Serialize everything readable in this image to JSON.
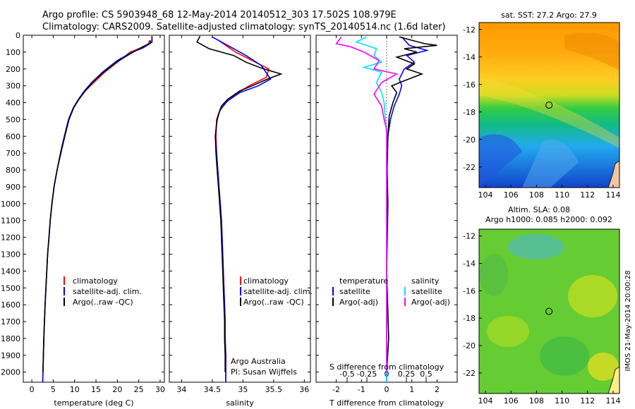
{
  "header": {
    "line1": "Argo profile: CS 5903948_68 12-May-2014 20140512_303 17.502S 108.979E",
    "line2": "Climatology: CARS2009. Satellite-adjusted climatology: synTS_20140514.nc (1.6d later)"
  },
  "colors": {
    "climatology": "#ff0000",
    "satellite": "#0000ff",
    "argo": "#000000",
    "satellite_s": "#00e0ff",
    "argo_s": "#ff00ff"
  },
  "depth_ticks": [
    "0",
    "100",
    "200",
    "300",
    "400",
    "500",
    "600",
    "700",
    "800",
    "900",
    "1000",
    "1100",
    "1200",
    "1300",
    "1400",
    "1500",
    "1600",
    "1700",
    "1800",
    "1900",
    "2000"
  ],
  "chart_data": [
    {
      "type": "line",
      "name": "temperature",
      "xlabel": "temperature (deg C)",
      "xlim": [
        -2,
        31
      ],
      "ylim": [
        2060,
        0
      ],
      "xticks": [
        "0",
        "5",
        "10",
        "15",
        "20",
        "25",
        "30"
      ],
      "legend": [
        "climatology",
        "satellite-adj. clim.",
        "Argo(..raw -QC)"
      ],
      "series": [
        {
          "name": "climatology",
          "color": "#ff0000",
          "points": [
            [
              27.5,
              30
            ],
            [
              27.3,
              50
            ],
            [
              25.5,
              75
            ],
            [
              23,
              100
            ],
            [
              20.5,
              150
            ],
            [
              17,
              220
            ],
            [
              14.5,
              280
            ],
            [
              12.5,
              330
            ],
            [
              11,
              380
            ],
            [
              9.8,
              430
            ],
            [
              8.6,
              500
            ],
            [
              7.6,
              600
            ],
            [
              6.7,
              700
            ],
            [
              5.9,
              800
            ],
            [
              5.2,
              900
            ],
            [
              4.7,
              1000
            ],
            [
              4.3,
              1100
            ],
            [
              4,
              1200
            ],
            [
              3.7,
              1300
            ],
            [
              3.5,
              1400
            ],
            [
              3.3,
              1500
            ],
            [
              3.1,
              1600
            ],
            [
              2.95,
              1700
            ],
            [
              2.8,
              1800
            ],
            [
              2.7,
              1900
            ],
            [
              2.6,
              2000
            ],
            [
              2.55,
              2060
            ]
          ]
        },
        {
          "name": "satellite-adj. clim.",
          "color": "#0000ff",
          "points": [
            [
              27.8,
              30
            ],
            [
              27.6,
              50
            ],
            [
              26,
              75
            ],
            [
              23.5,
              100
            ],
            [
              20,
              150
            ],
            [
              16.5,
              220
            ],
            [
              14,
              280
            ],
            [
              12.3,
              330
            ],
            [
              10.9,
              380
            ],
            [
              9.7,
              430
            ],
            [
              8.6,
              500
            ],
            [
              7.6,
              600
            ],
            [
              6.7,
              700
            ],
            [
              5.9,
              800
            ],
            [
              5.2,
              900
            ],
            [
              4.7,
              1000
            ],
            [
              4.3,
              1100
            ],
            [
              4,
              1200
            ],
            [
              3.7,
              1300
            ],
            [
              3.5,
              1400
            ],
            [
              3.3,
              1500
            ],
            [
              3.1,
              1600
            ],
            [
              2.95,
              1700
            ],
            [
              2.8,
              1800
            ],
            [
              2.7,
              1900
            ],
            [
              2.6,
              2000
            ],
            [
              2.55,
              2060
            ]
          ]
        },
        {
          "name": "Argo(..raw -QC)",
          "color": "#000000",
          "points": [
            [
              28.1,
              5
            ],
            [
              28.1,
              40
            ],
            [
              27.6,
              50
            ],
            [
              25.8,
              70
            ],
            [
              23,
              110
            ],
            [
              19.8,
              160
            ],
            [
              16.5,
              225
            ],
            [
              14.2,
              280
            ],
            [
              12.5,
              330
            ],
            [
              11,
              380
            ],
            [
              9.8,
              430
            ],
            [
              8.7,
              500
            ],
            [
              7.7,
              600
            ],
            [
              6.8,
              700
            ],
            [
              5.9,
              800
            ],
            [
              5.2,
              900
            ],
            [
              4.7,
              1000
            ],
            [
              4.3,
              1100
            ],
            [
              4,
              1200
            ],
            [
              3.7,
              1300
            ],
            [
              3.5,
              1400
            ],
            [
              3.3,
              1500
            ],
            [
              3.1,
              1600
            ],
            [
              2.95,
              1700
            ],
            [
              2.8,
              1800
            ],
            [
              2.7,
              1900
            ],
            [
              2.6,
              2000
            ]
          ]
        }
      ]
    },
    {
      "type": "line",
      "name": "salinity",
      "xlabel": "salinity",
      "xlim": [
        33.8,
        36.1
      ],
      "ylim": [
        2060,
        0
      ],
      "xticks": [
        "34",
        "34.5",
        "35",
        "35.5",
        "36"
      ],
      "legend": [
        "climatology",
        "satellite-adj. clim.",
        "Argo(..raw -QC)"
      ],
      "annotation": [
        "Argo Australia",
        "PI: Susan Wijffels"
      ],
      "series": [
        {
          "name": "climatology",
          "color": "#ff0000",
          "points": [
            [
              34.6,
              30
            ],
            [
              34.72,
              60
            ],
            [
              34.88,
              100
            ],
            [
              35.15,
              150
            ],
            [
              35.42,
              200
            ],
            [
              35.38,
              250
            ],
            [
              35.1,
              300
            ],
            [
              34.88,
              350
            ],
            [
              34.72,
              400
            ],
            [
              34.62,
              450
            ],
            [
              34.57,
              500
            ],
            [
              34.56,
              600
            ],
            [
              34.57,
              700
            ],
            [
              34.59,
              800
            ],
            [
              34.61,
              900
            ],
            [
              34.63,
              1000
            ],
            [
              34.65,
              1100
            ],
            [
              34.66,
              1200
            ],
            [
              34.67,
              1300
            ],
            [
              34.68,
              1400
            ],
            [
              34.69,
              1500
            ],
            [
              34.7,
              1600
            ],
            [
              34.71,
              1700
            ],
            [
              34.71,
              1800
            ],
            [
              34.72,
              1900
            ],
            [
              34.72,
              2000
            ],
            [
              34.72,
              2060
            ]
          ]
        },
        {
          "name": "satellite-adj. clim.",
          "color": "#0000ff",
          "points": [
            [
              34.5,
              10
            ],
            [
              34.65,
              40
            ],
            [
              34.8,
              70
            ],
            [
              35.05,
              120
            ],
            [
              35.3,
              180
            ],
            [
              35.45,
              260
            ],
            [
              35.25,
              300
            ],
            [
              34.95,
              340
            ],
            [
              34.75,
              390
            ],
            [
              34.63,
              440
            ],
            [
              34.58,
              500
            ],
            [
              34.55,
              600
            ],
            [
              34.57,
              700
            ],
            [
              34.59,
              800
            ],
            [
              34.61,
              900
            ],
            [
              34.63,
              1000
            ],
            [
              34.65,
              1100
            ],
            [
              34.66,
              1200
            ],
            [
              34.67,
              1300
            ],
            [
              34.68,
              1400
            ],
            [
              34.69,
              1500
            ],
            [
              34.7,
              1600
            ],
            [
              34.71,
              1700
            ],
            [
              34.71,
              1800
            ],
            [
              34.72,
              1900
            ],
            [
              34.72,
              2000
            ],
            [
              34.72,
              2060
            ]
          ]
        },
        {
          "name": "Argo(..raw -QC)",
          "color": "#000000",
          "points": [
            [
              34.3,
              5
            ],
            [
              34.25,
              40
            ],
            [
              34.45,
              80
            ],
            [
              34.85,
              120
            ],
            [
              35.05,
              160
            ],
            [
              35.3,
              195
            ],
            [
              35.62,
              230
            ],
            [
              35.4,
              260
            ],
            [
              35.15,
              300
            ],
            [
              34.95,
              330
            ],
            [
              34.75,
              380
            ],
            [
              34.65,
              420
            ],
            [
              34.6,
              470
            ],
            [
              34.57,
              520
            ],
            [
              34.55,
              600
            ],
            [
              34.56,
              700
            ],
            [
              34.58,
              800
            ],
            [
              34.6,
              900
            ],
            [
              34.62,
              1000
            ],
            [
              34.64,
              1100
            ],
            [
              34.65,
              1200
            ],
            [
              34.66,
              1300
            ],
            [
              34.67,
              1400
            ],
            [
              34.68,
              1500
            ],
            [
              34.69,
              1600
            ],
            [
              34.7,
              1700
            ],
            [
              34.7,
              1800
            ],
            [
              34.71,
              1900
            ],
            [
              34.71,
              2000
            ]
          ]
        }
      ]
    },
    {
      "type": "line",
      "name": "difference",
      "xlabel": "T difference from climatology",
      "xlabel_top": "S difference from climatology",
      "xlim": [
        -2.8,
        2.8
      ],
      "ylim": [
        2060,
        0
      ],
      "xticks": [
        "-2",
        "-1",
        "0",
        "1",
        "2"
      ],
      "s_ticks": [
        "-0.5",
        "-0.25",
        "0",
        "0.25",
        "0.5"
      ],
      "legend_temperature": {
        "title": "temperature",
        "items": [
          "satellite",
          "Argo(-adj)"
        ]
      },
      "legend_salinity": {
        "title": "salinity",
        "items": [
          "satellite",
          "Argo(-adj)"
        ]
      },
      "series": [
        {
          "name": "temperature satellite",
          "color": "#0000ff",
          "points": [
            [
              0.6,
              10
            ],
            [
              0.9,
              60
            ],
            [
              1.6,
              90
            ],
            [
              0.8,
              120
            ],
            [
              1.1,
              160
            ],
            [
              0.7,
              200
            ],
            [
              0.5,
              260
            ],
            [
              0.6,
              300
            ],
            [
              0.5,
              350
            ],
            [
              0.3,
              420
            ],
            [
              0.15,
              500
            ],
            [
              0.05,
              600
            ],
            [
              0,
              700
            ],
            [
              0,
              2060
            ]
          ]
        },
        {
          "name": "temperature Argo(-adj)",
          "color": "#000000",
          "points": [
            [
              0.5,
              10
            ],
            [
              1.5,
              50
            ],
            [
              2.0,
              60
            ],
            [
              0.7,
              80
            ],
            [
              1.2,
              100
            ],
            [
              0.4,
              130
            ],
            [
              1.1,
              170
            ],
            [
              0.8,
              200
            ],
            [
              1.4,
              230
            ],
            [
              0.7,
              270
            ],
            [
              0.2,
              300
            ],
            [
              0.4,
              340
            ],
            [
              0.25,
              400
            ],
            [
              0.1,
              480
            ],
            [
              0.05,
              600
            ],
            [
              0.02,
              800
            ],
            [
              0.05,
              1000
            ],
            [
              0,
              1400
            ],
            [
              0.08,
              1800
            ],
            [
              0,
              2000
            ]
          ]
        },
        {
          "name": "salinity satellite",
          "color": "#00e0ff",
          "points": [
            [
              -0.8,
              10
            ],
            [
              -1.2,
              40
            ],
            [
              -0.4,
              80
            ],
            [
              -0.5,
              120
            ],
            [
              -0.2,
              160
            ],
            [
              -0.9,
              190
            ],
            [
              -0.2,
              220
            ],
            [
              -0.4,
              280
            ],
            [
              -0.2,
              340
            ],
            [
              -0.1,
              400
            ],
            [
              -0.05,
              500
            ],
            [
              0,
              600
            ],
            [
              0,
              2060
            ]
          ]
        },
        {
          "name": "salinity Argo(-adj)",
          "color": "#ff00ff",
          "points": [
            [
              -1.8,
              10
            ],
            [
              -2.0,
              50
            ],
            [
              -1.4,
              70
            ],
            [
              -0.9,
              100
            ],
            [
              -0.3,
              150
            ],
            [
              -0.5,
              200
            ],
            [
              0.4,
              230
            ],
            [
              -0.2,
              280
            ],
            [
              -0.5,
              350
            ],
            [
              -0.2,
              420
            ],
            [
              -0.1,
              500
            ],
            [
              0,
              560
            ],
            [
              0,
              2000
            ]
          ]
        }
      ]
    }
  ],
  "maps": {
    "sst": {
      "title": "sat. SST: 27.2 Argo: 27.9",
      "yticks": [
        "-12",
        "-14",
        "-16",
        "-18",
        "-20",
        "-22"
      ],
      "xticks": [
        "104",
        "106",
        "108",
        "110",
        "112",
        "114"
      ]
    },
    "sla": {
      "title1": "Altim. SLA: 0.08",
      "title2": "Argo h1000: 0.085 h2000: 0.092",
      "yticks": [
        "-12",
        "-14",
        "-16",
        "-18",
        "-20",
        "-22"
      ],
      "xticks": [
        "104",
        "106",
        "108",
        "110",
        "112",
        "114"
      ]
    },
    "argo_position": {
      "lon": 108.979,
      "lat": -17.502
    },
    "lon_range": [
      103.5,
      114.5
    ],
    "lat_range": [
      -11.5,
      -23.5
    ]
  },
  "stamp": "IMOS 21-May-2014 20:00:28"
}
